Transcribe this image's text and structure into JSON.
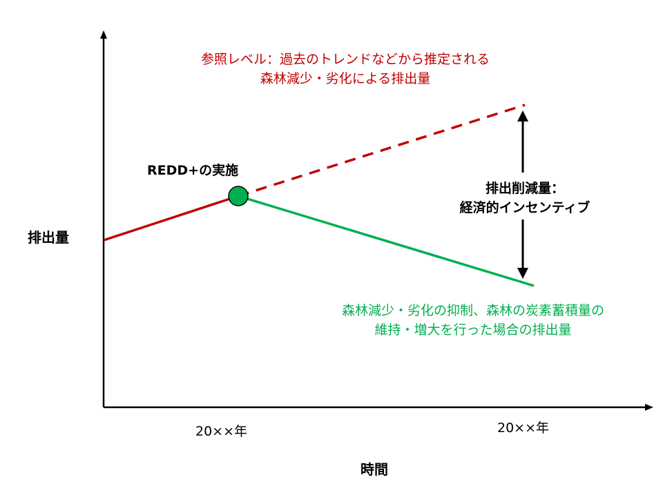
{
  "axes": {
    "y_label": "排出量",
    "x_label": "時間",
    "x_tick_left": "20××年",
    "x_tick_right": "20××年"
  },
  "annotations": {
    "reference_level": {
      "line1": "参照レベル：過去のトレンドなどから推定される",
      "line2": "森林減少・劣化による排出量"
    },
    "redd_implementation": "REDD+の実施",
    "reduction": {
      "line1": "排出削減量：",
      "line2": "経済的インセンティブ"
    },
    "redd_scenario": {
      "line1": "森林減少・劣化の抑制、森林の炭素蓄積量の",
      "line2": "維持・増大を行った場合の排出量"
    }
  },
  "colors": {
    "axis": "#000000",
    "reference_line": "#C00000",
    "redd_line": "#00B050",
    "implementation_marker": "#00B050",
    "reduction_arrow": "#000000"
  }
}
